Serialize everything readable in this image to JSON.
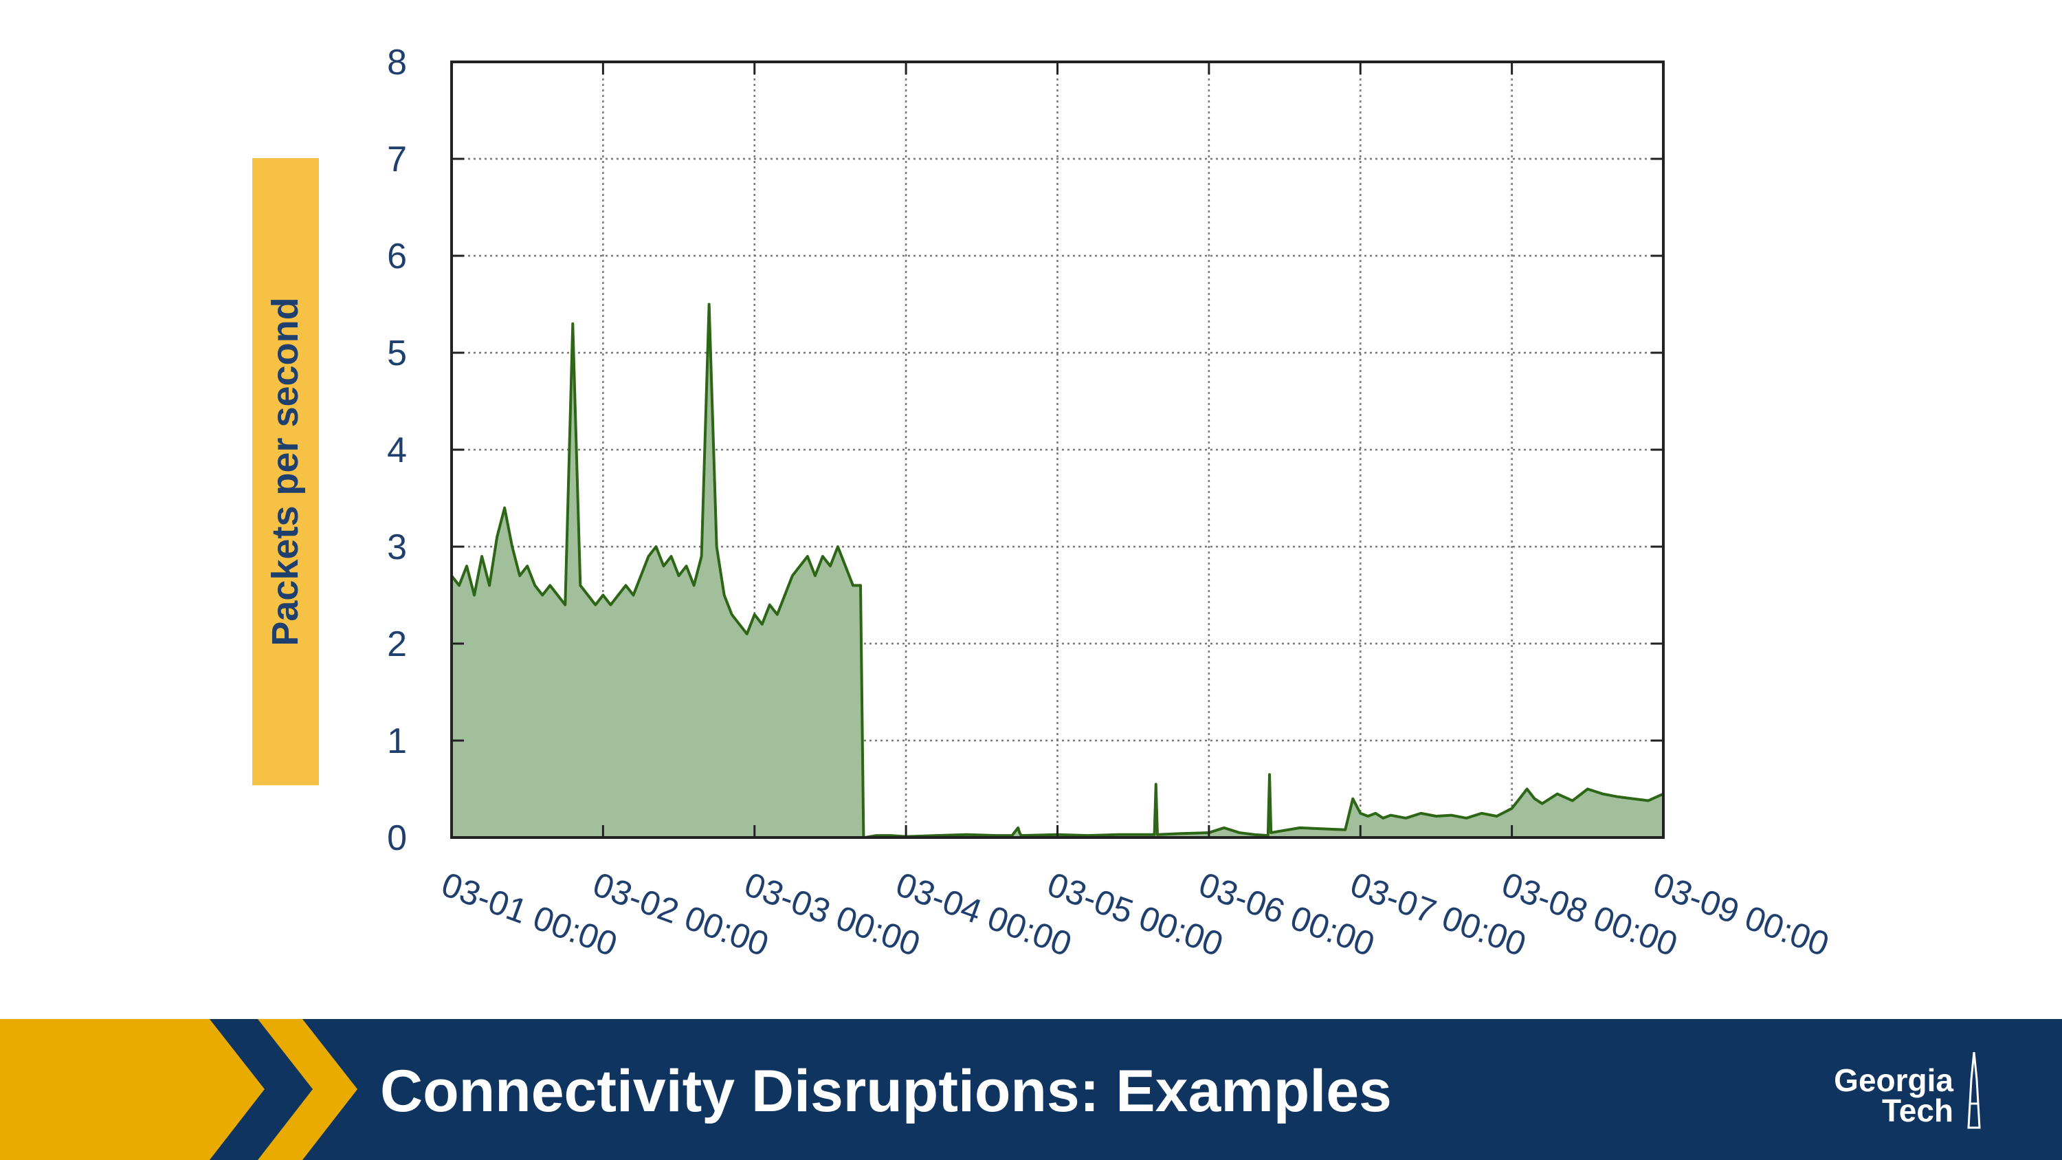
{
  "slide": {
    "title": "Connectivity Disruptions: Examples",
    "logo_line1": "Georgia",
    "logo_line2": "Tech"
  },
  "colors": {
    "fill": "#a0bf9a",
    "line": "#2d6616",
    "label_box": "#f7c145",
    "text": "#1f3f6e",
    "footer": "#0f3460",
    "chevron_gold": "#eaab00"
  },
  "chart_data": {
    "type": "area",
    "title": "",
    "xlabel": "",
    "ylabel": "Packets per second",
    "ylim": [
      0,
      8
    ],
    "yticks": [
      "0",
      "1",
      "2",
      "3",
      "4",
      "5",
      "6",
      "7",
      "8"
    ],
    "xticks": [
      "03-01 00:00",
      "03-02 00:00",
      "03-03 00:00",
      "03-04 00:00",
      "03-05 00:00",
      "03-06 00:00",
      "03-07 00:00",
      "03-08 00:00",
      "03-09 00:00"
    ],
    "xlim_days": [
      1,
      9
    ],
    "grid": true,
    "series": [
      {
        "x": [
          1.0,
          1.05,
          1.1,
          1.15,
          1.2,
          1.25,
          1.3,
          1.35,
          1.4,
          1.45,
          1.5,
          1.55,
          1.6,
          1.65,
          1.7,
          1.75,
          1.8,
          1.85,
          1.9,
          1.95,
          2.0,
          2.05,
          2.1,
          2.15,
          2.2,
          2.25,
          2.3,
          2.35,
          2.4,
          2.45,
          2.5,
          2.55,
          2.6,
          2.65,
          2.7,
          2.75,
          2.8,
          2.85,
          2.9,
          2.95,
          3.0,
          3.05,
          3.1,
          3.15,
          3.2,
          3.25,
          3.3,
          3.35,
          3.4,
          3.45,
          3.5,
          3.55,
          3.6,
          3.65,
          3.7,
          3.72,
          3.73,
          3.8,
          3.9,
          4.0,
          4.2,
          4.4,
          4.6,
          4.7,
          4.74,
          4.75,
          4.76,
          5.0,
          5.2,
          5.4,
          5.64,
          5.65,
          5.66,
          5.8,
          6.0,
          6.1,
          6.2,
          6.3,
          6.39,
          6.4,
          6.41,
          6.6,
          6.9,
          6.95,
          7.0,
          7.05,
          7.1,
          7.15,
          7.2,
          7.3,
          7.4,
          7.5,
          7.6,
          7.7,
          7.8,
          7.9,
          8.0,
          8.1,
          8.15,
          8.2,
          8.3,
          8.4,
          8.5,
          8.6,
          8.7,
          8.8,
          8.9,
          9.0
        ],
        "y": [
          2.7,
          2.6,
          2.8,
          2.5,
          2.9,
          2.6,
          3.1,
          3.4,
          3.0,
          2.7,
          2.8,
          2.6,
          2.5,
          2.6,
          2.5,
          2.4,
          5.3,
          2.6,
          2.5,
          2.4,
          2.5,
          2.4,
          2.5,
          2.6,
          2.5,
          2.7,
          2.9,
          3.0,
          2.8,
          2.9,
          2.7,
          2.8,
          2.6,
          2.9,
          5.5,
          3.0,
          2.5,
          2.3,
          2.2,
          2.1,
          2.3,
          2.2,
          2.4,
          2.3,
          2.5,
          2.7,
          2.8,
          2.9,
          2.7,
          2.9,
          2.8,
          3.0,
          2.8,
          2.6,
          2.6,
          0.0,
          0.0,
          0.02,
          0.02,
          0.01,
          0.02,
          0.03,
          0.02,
          0.02,
          0.1,
          0.05,
          0.02,
          0.03,
          0.02,
          0.03,
          0.03,
          0.55,
          0.03,
          0.04,
          0.05,
          0.1,
          0.05,
          0.03,
          0.02,
          0.65,
          0.05,
          0.1,
          0.08,
          0.4,
          0.25,
          0.22,
          0.25,
          0.2,
          0.23,
          0.2,
          0.25,
          0.22,
          0.23,
          0.2,
          0.25,
          0.22,
          0.3,
          0.5,
          0.4,
          0.35,
          0.45,
          0.38,
          0.5,
          0.45,
          0.42,
          0.4,
          0.38,
          0.45
        ]
      }
    ]
  }
}
